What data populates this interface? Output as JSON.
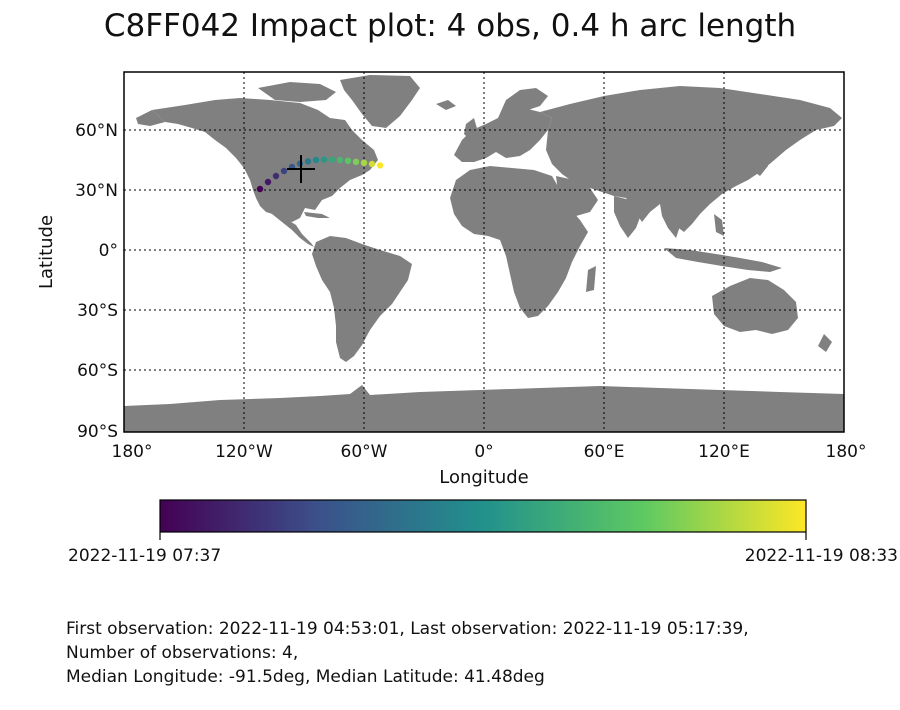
{
  "title": "C8FF042 Impact plot: 4 obs, 0.4 h arc length",
  "map": {
    "xlabel": "Longitude",
    "ylabel": "Latitude",
    "lon_ticks": [
      "180°",
      "120°W",
      "60°W",
      "0°",
      "60°E",
      "120°E",
      "180°"
    ],
    "lat_ticks": [
      "60°N",
      "30°N",
      "0°",
      "30°S",
      "60°S",
      "90°S"
    ],
    "lon_range": [
      -180,
      180
    ],
    "lat_range": [
      -90,
      85
    ],
    "grid": "dotted",
    "land_color": "#808080",
    "ocean_color": "#ffffff",
    "marker": {
      "type": "plus",
      "lon": -91.5,
      "lat": 41.48,
      "color": "#000000"
    }
  },
  "chart_data": {
    "type": "scatter",
    "series": [
      {
        "x": [
          -112,
          -108,
          -104,
          -100,
          -96,
          -92,
          -88,
          -84,
          -80,
          -76,
          -72,
          -68,
          -64,
          -60,
          -56,
          -52
        ],
        "y": [
          31.5,
          35.0,
          38.0,
          40.5,
          42.5,
          44.2,
          45.3,
          46.0,
          46.2,
          46.2,
          46.0,
          45.6,
          45.1,
          44.6,
          44.0,
          43.3
        ]
      }
    ],
    "xlabel": "Longitude",
    "ylabel": "Latitude",
    "xlim": [
      -180,
      180
    ],
    "ylim": [
      -90,
      85
    ],
    "colormap": "viridis",
    "colors": [
      "#440154",
      "#3b528b",
      "#21918c",
      "#5ec962",
      "#fde725"
    ],
    "colorbar_labels": [
      "2022-11-19 07:37",
      "2022-11-19 08:33"
    ]
  },
  "info": {
    "line1": "First observation: 2022-11-19 04:53:01, Last observation: 2022-11-19 05:17:39,",
    "line2": "Number of observations: 4,",
    "line3": "Median Longitude: -91.5deg, Median Latitude: 41.48deg"
  }
}
